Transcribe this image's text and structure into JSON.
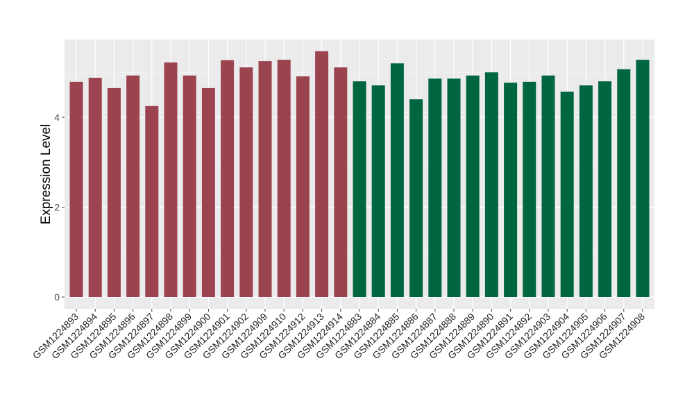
{
  "chart_data": {
    "type": "bar",
    "title": "",
    "xlabel": "",
    "ylabel": "Expression Level",
    "ylim": [
      0,
      5.8
    ],
    "yticks": [
      0,
      2,
      4
    ],
    "grid": true,
    "categories": [
      "GSM1224893",
      "GSM1224894",
      "GSM1224895",
      "GSM1224896",
      "GSM1224897",
      "GSM1224898",
      "GSM1224899",
      "GSM1224900",
      "GSM1224901",
      "GSM1224902",
      "GSM1224909",
      "GSM1224910",
      "GSM1224912",
      "GSM1224913",
      "GSM1224914",
      "GSM1224883",
      "GSM1224884",
      "GSM1224885",
      "GSM1224886",
      "GSM1224887",
      "GSM1224888",
      "GSM1224889",
      "GSM1224890",
      "GSM1224891",
      "GSM1224892",
      "GSM1224903",
      "GSM1224904",
      "GSM1224905",
      "GSM1224906",
      "GSM1224907",
      "GSM1224908"
    ],
    "values": [
      4.79,
      4.88,
      4.65,
      4.93,
      4.25,
      5.22,
      4.93,
      4.65,
      5.27,
      5.11,
      5.25,
      5.28,
      4.91,
      5.47,
      5.11,
      4.8,
      4.71,
      5.2,
      4.4,
      4.86,
      4.86,
      4.93,
      5.0,
      4.77,
      4.79,
      4.93,
      4.57,
      4.71,
      4.8,
      5.07,
      5.28
    ],
    "groups": [
      0,
      0,
      0,
      0,
      0,
      0,
      0,
      0,
      0,
      0,
      0,
      0,
      0,
      0,
      0,
      1,
      1,
      1,
      1,
      1,
      1,
      1,
      1,
      1,
      1,
      1,
      1,
      1,
      1,
      1,
      1
    ],
    "group_colors": [
      "#9c4350",
      "#006640"
    ]
  }
}
